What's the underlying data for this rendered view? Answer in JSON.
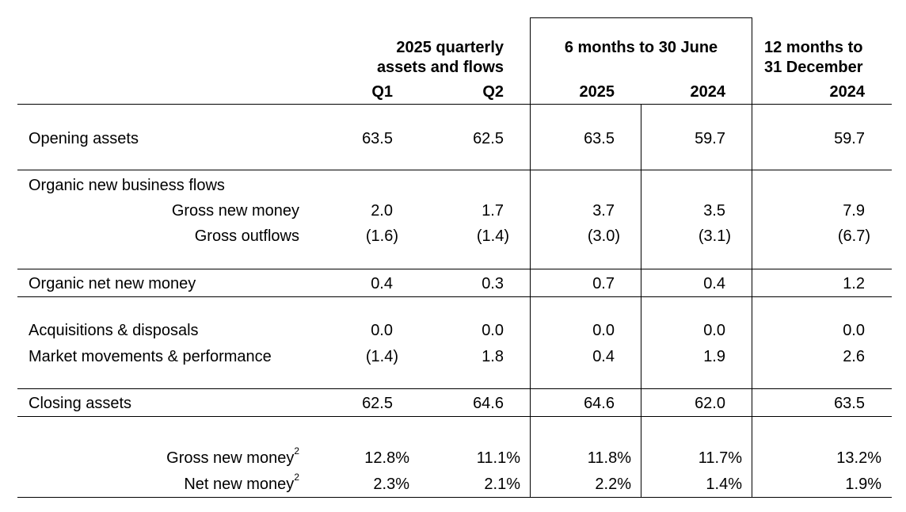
{
  "headers": {
    "group1_line1": "2025 quarterly",
    "group1_line2": "assets and flows",
    "group2": "6 months to 30 June",
    "group3_line1": "12 months to",
    "group3_line2": "31 December",
    "columns": [
      "Q1",
      "Q2",
      "2025",
      "2024",
      "2024"
    ]
  },
  "rows": {
    "opening": {
      "label": "Opening assets",
      "values": [
        "63.5",
        "62.5",
        "63.5",
        "59.7",
        "59.7"
      ]
    },
    "organic_flows": {
      "label": "Organic new business flows"
    },
    "gross_new_money": {
      "label": "Gross new money",
      "values": [
        "2.0",
        "1.7",
        "3.7",
        "3.5",
        "7.9"
      ]
    },
    "gross_outflows": {
      "label": "Gross outflows",
      "values": [
        "(1.6)",
        "(1.4)",
        "(3.0)",
        "(3.1)",
        "(6.7)"
      ]
    },
    "organic_nnm": {
      "label": "Organic net new money",
      "values": [
        "0.4",
        "0.3",
        "0.7",
        "0.4",
        "1.2"
      ]
    },
    "acquisitions": {
      "label": "Acquisitions & disposals",
      "values": [
        "0.0",
        "0.0",
        "0.0",
        "0.0",
        "0.0"
      ]
    },
    "market": {
      "label": "Market movements & performance",
      "values": [
        "(1.4)",
        "1.8",
        "0.4",
        "1.9",
        "2.6"
      ]
    },
    "closing": {
      "label": "Closing assets",
      "values": [
        "62.5",
        "64.6",
        "64.6",
        "62.0",
        "63.5"
      ]
    },
    "gnm_pct": {
      "label": "Gross new money",
      "sup": "2",
      "values": [
        "12.8%",
        "11.1%",
        "11.8%",
        "11.7%",
        "13.2%"
      ]
    },
    "nnm_pct": {
      "label": "Net new money",
      "sup": "2",
      "values": [
        "2.3%",
        "2.1%",
        "2.2%",
        "1.4%",
        "1.9%"
      ]
    }
  }
}
